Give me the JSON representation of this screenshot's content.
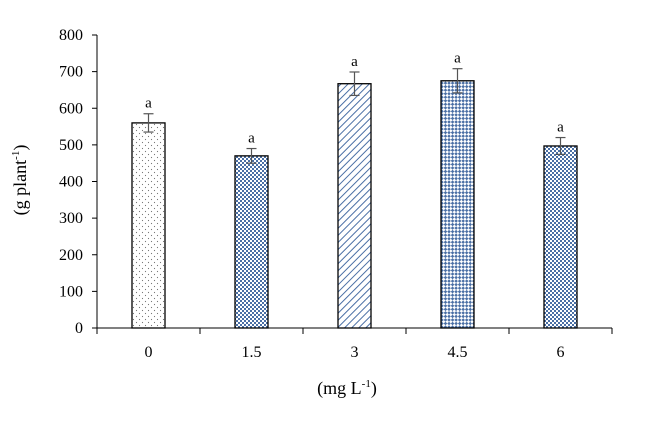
{
  "chart_data": {
    "type": "bar",
    "categories": [
      "0",
      "1.5",
      "3",
      "4.5",
      "6"
    ],
    "values": [
      560,
      470,
      667,
      675,
      497
    ],
    "errors": [
      25,
      20,
      32,
      33,
      23
    ],
    "significance_labels": [
      "a",
      "a",
      "a",
      "a",
      "a"
    ],
    "patterns": [
      "dots",
      "fine-check",
      "diagonal-hatch",
      "diamond-check",
      "fine-check"
    ],
    "ylim": [
      0,
      800
    ],
    "yticks": [
      "0",
      "100",
      "200",
      "300",
      "400",
      "500",
      "600",
      "700",
      "800"
    ],
    "ylabel": {
      "text": "(g plant",
      "sup": "-1",
      "close": ")"
    },
    "xlabel": {
      "text": "(mg L",
      "sup": "-1",
      "close": ")"
    },
    "grid": false,
    "colors": {
      "bar_stroke": "#000000",
      "pattern_blue": "#4a6fa5",
      "pattern_dot": "#777777",
      "error_bar": "#555555"
    }
  }
}
